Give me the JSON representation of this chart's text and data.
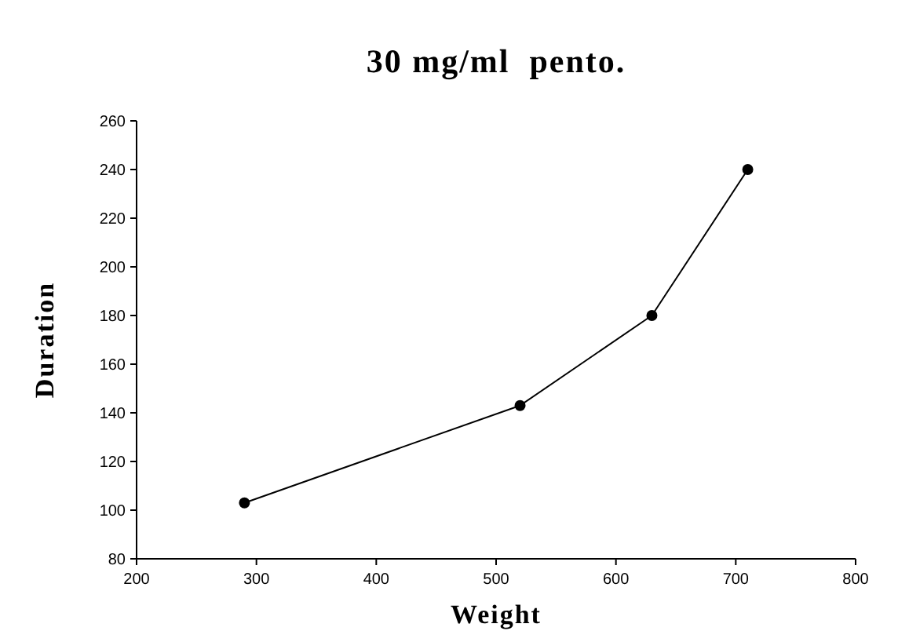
{
  "chart_data": {
    "type": "line",
    "title": "30 mg/ml  pento.",
    "xlabel": "Weight",
    "ylabel": "Duration",
    "x": [
      290,
      520,
      630,
      710
    ],
    "series": [
      {
        "color": "#000000",
        "values": [
          103,
          143,
          180,
          240
        ]
      }
    ],
    "xlim": [
      200,
      800
    ],
    "xticks": [
      200,
      300,
      400,
      500,
      600,
      700,
      800
    ],
    "ylim": [
      80,
      260
    ],
    "yticks": [
      80,
      100,
      120,
      140,
      160,
      180,
      200,
      220,
      240,
      260
    ],
    "grid": false,
    "marker": "circle",
    "line_style": "solid"
  }
}
